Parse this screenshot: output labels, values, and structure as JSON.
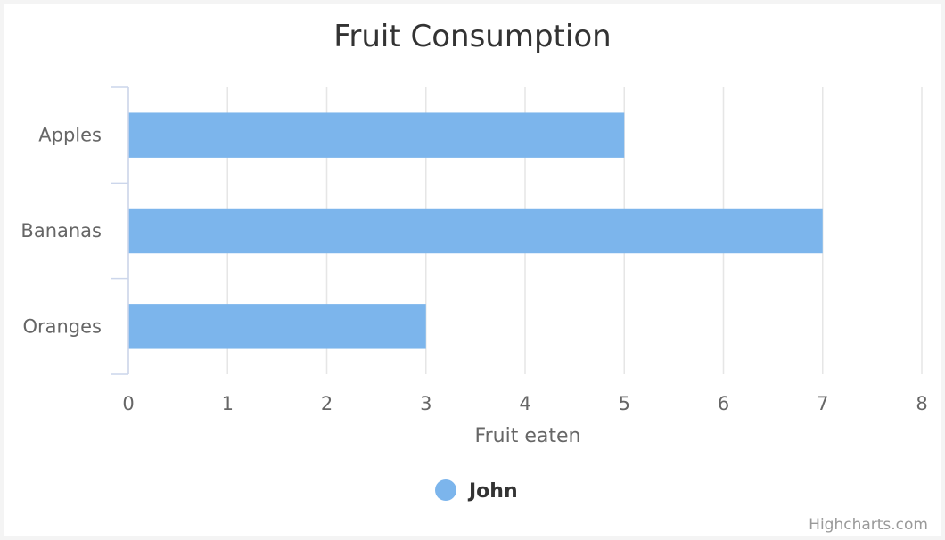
{
  "chart_data": {
    "type": "bar",
    "orientation": "horizontal",
    "title": "Fruit Consumption",
    "categories": [
      "Apples",
      "Bananas",
      "Oranges"
    ],
    "series": [
      {
        "name": "John",
        "values": [
          5,
          7,
          3
        ],
        "color": "#7cb5ec"
      }
    ],
    "xlabel": "Fruit eaten",
    "xlim": [
      0,
      8
    ],
    "xticks": [
      "0",
      "1",
      "2",
      "3",
      "4",
      "5",
      "6",
      "7",
      "8"
    ],
    "grid": true,
    "legend_position": "bottom-center",
    "credits": "Highcharts.com"
  },
  "colors": {
    "grid": "#e6e6e6",
    "axis_line": "#ccd6eb",
    "bar": "#7cb5ec"
  }
}
